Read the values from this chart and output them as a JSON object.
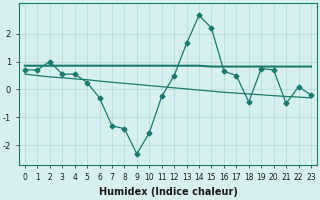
{
  "x": [
    0,
    1,
    2,
    3,
    4,
    5,
    6,
    7,
    8,
    9,
    10,
    11,
    12,
    13,
    14,
    15,
    16,
    17,
    18,
    19,
    20,
    21,
    22,
    23
  ],
  "y_main": [
    0.7,
    0.7,
    1.0,
    0.55,
    0.55,
    0.25,
    -0.3,
    -1.3,
    -1.4,
    -2.3,
    -1.55,
    -0.25,
    0.5,
    1.65,
    2.65,
    2.2,
    0.65,
    0.5,
    -0.45,
    0.75,
    0.7,
    -0.5,
    0.1,
    -0.2
  ],
  "y_trend1": [
    0.85,
    0.85,
    0.85,
    0.85,
    0.85,
    0.85,
    0.85,
    0.85,
    0.85,
    0.85,
    0.85,
    0.85,
    0.85,
    0.85,
    0.85,
    0.82,
    0.82,
    0.82,
    0.82,
    0.82,
    0.82,
    0.82,
    0.82,
    0.82
  ],
  "y_trend2": [
    0.55,
    0.5,
    0.45,
    0.42,
    0.38,
    0.35,
    0.3,
    0.26,
    0.22,
    0.18,
    0.14,
    0.1,
    0.06,
    0.02,
    -0.02,
    -0.06,
    -0.1,
    -0.13,
    -0.16,
    -0.19,
    -0.22,
    -0.25,
    -0.27,
    -0.3
  ],
  "line_color": "#1a7a6e",
  "bg_color": "#d6f0ef",
  "grid_color": "#b8dedd",
  "xlabel": "Humidex (Indice chaleur)",
  "ylim": [
    -2.7,
    3.1
  ],
  "xlim": [
    -0.5,
    23.5
  ],
  "yticks": [
    -2,
    -1,
    0,
    1,
    2
  ],
  "xticks": [
    0,
    1,
    2,
    3,
    4,
    5,
    6,
    7,
    8,
    9,
    10,
    11,
    12,
    13,
    14,
    15,
    16,
    17,
    18,
    19,
    20,
    21,
    22,
    23
  ],
  "marker": "D",
  "markersize": 2.5,
  "linewidth": 0.9,
  "trend1_lw": 1.5,
  "trend2_lw": 0.9,
  "tick_fontsize": 5.5,
  "xlabel_fontsize": 7
}
